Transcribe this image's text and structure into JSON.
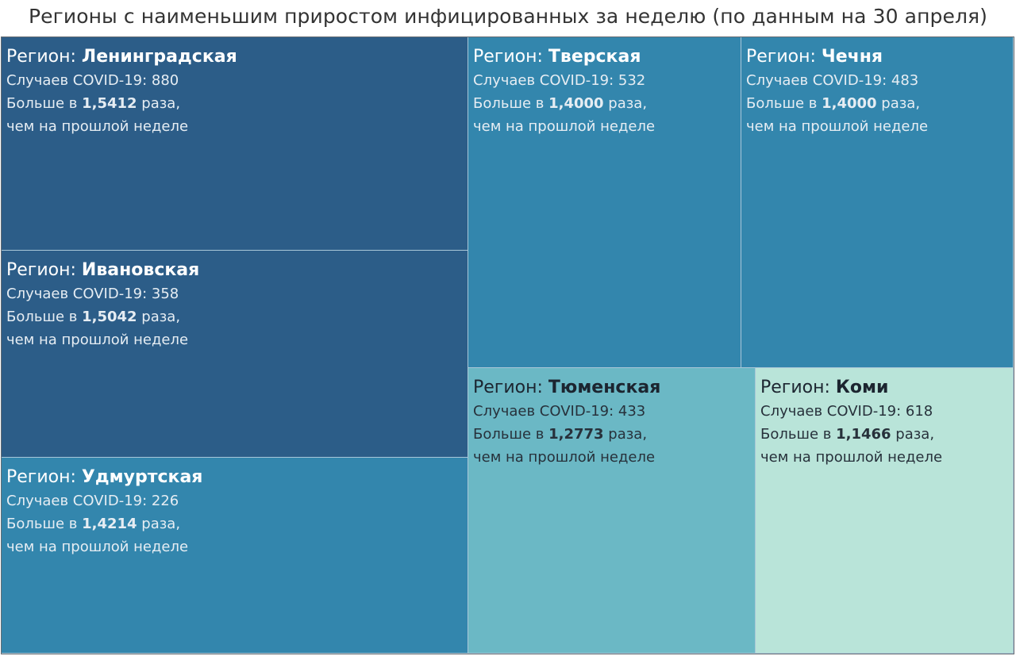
{
  "title": "Регионы с наименьшим приростом инфицированных за неделю (по данным на 30 апреля)",
  "labels": {
    "region_prefix": "Регион:",
    "cases_prefix": "Случаев COVID-19:",
    "more_prefix": "Больше в",
    "more_suffix": "раза,",
    "last_week": "чем на прошлой неделе"
  },
  "colors": {
    "darkest": "#2c5d88",
    "dark": "#3386ad",
    "medium": "#6bb8c5",
    "light": "#b9e4d9",
    "border": "#a9c7d8"
  },
  "chart_data": {
    "type": "treemap",
    "title": "Регионы с наименьшим приростом инфицированных за неделю (по данным на 30 апреля)",
    "items": [
      {
        "region": "Ленинградская",
        "cases": 880,
        "ratio": "1,5412",
        "ratio_value": 1.5412
      },
      {
        "region": "Ивановская",
        "cases": 358,
        "ratio": "1,5042",
        "ratio_value": 1.5042
      },
      {
        "region": "Удмуртская",
        "cases": 226,
        "ratio": "1,4214",
        "ratio_value": 1.4214
      },
      {
        "region": "Тверская",
        "cases": 532,
        "ratio": "1,4000",
        "ratio_value": 1.4
      },
      {
        "region": "Чечня",
        "cases": 483,
        "ratio": "1,4000",
        "ratio_value": 1.4
      },
      {
        "region": "Тюменская",
        "cases": 433,
        "ratio": "1,2773",
        "ratio_value": 1.2773
      },
      {
        "region": "Коми",
        "cases": 618,
        "ratio": "1,1466",
        "ratio_value": 1.1466
      }
    ]
  }
}
